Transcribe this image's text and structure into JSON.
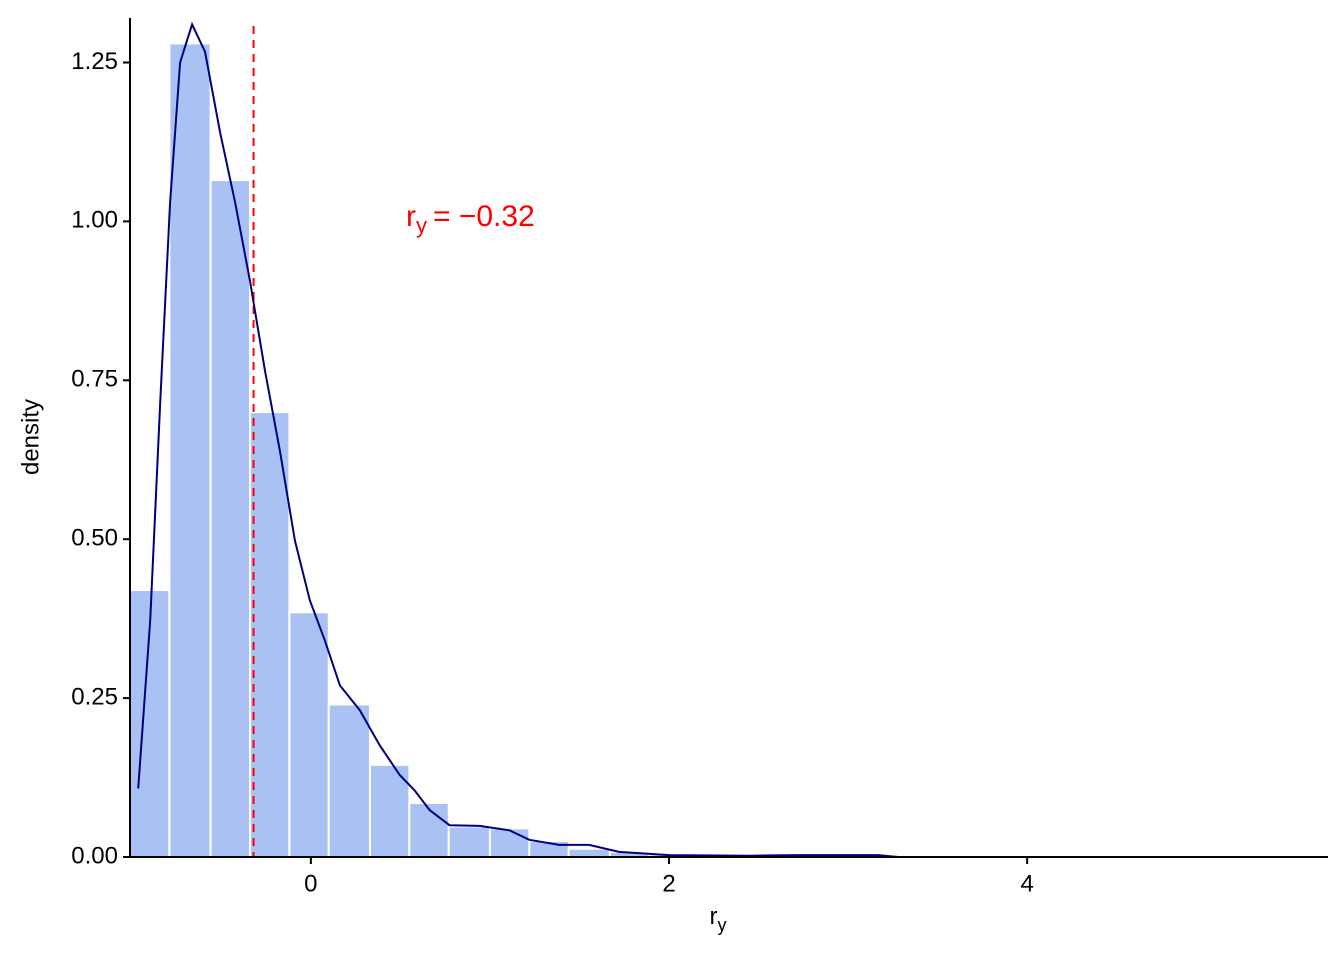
{
  "chart_data": {
    "type": "histogram",
    "xlabel": {
      "main": "r",
      "sub": "y"
    },
    "ylabel": "density",
    "bins": [
      -1.01,
      -0.79,
      -0.56,
      -0.34,
      -0.12,
      0.1,
      0.33,
      0.55,
      0.77,
      1.0,
      1.22,
      1.44,
      1.67,
      1.89,
      2.11,
      2.34,
      2.56,
      2.78,
      3.0,
      3.23,
      3.45,
      3.67,
      3.9,
      4.12,
      4.34,
      4.56,
      4.79,
      5.01,
      5.23,
      5.46
    ],
    "values": [
      0.42,
      1.28,
      1.065,
      0.7,
      0.385,
      0.24,
      0.145,
      0.085,
      0.048,
      0.045,
      0.025,
      0.013,
      0.008,
      0.004,
      0.002,
      0.002,
      0.001,
      0.001,
      0.001,
      0.001,
      0,
      0,
      0.001,
      0,
      0,
      0,
      0,
      0,
      0.001
    ],
    "color": "#aac1f3",
    "density": {
      "color": "#00007f",
      "x": [
        -0.964,
        -0.897,
        -0.841,
        -0.786,
        -0.73,
        -0.663,
        -0.591,
        -0.507,
        -0.423,
        -0.34,
        -0.256,
        -0.173,
        -0.089,
        -0.006,
        0.078,
        0.162,
        0.273,
        0.384,
        0.496,
        0.579,
        0.663,
        0.774,
        0.942,
        1.109,
        1.22,
        1.387,
        1.554,
        1.721,
        2.0,
        2.45,
        2.72,
        3.17,
        3.28,
        5.51
      ],
      "y": [
        0.108,
        0.372,
        0.718,
        1.03,
        1.25,
        1.31,
        1.267,
        1.14,
        1.03,
        0.906,
        0.765,
        0.639,
        0.498,
        0.404,
        0.341,
        0.27,
        0.231,
        0.176,
        0.129,
        0.105,
        0.074,
        0.05,
        0.049,
        0.042,
        0.027,
        0.019,
        0.019,
        0.008,
        0.003,
        0.002,
        0.003,
        0.003,
        0,
        0
      ]
    },
    "vline": {
      "value": -0.32,
      "color": "#ff0000"
    },
    "annotation": {
      "main": "r",
      "sub": "y",
      "text": "= −0.32"
    },
    "xlim": [
      -1.01,
      5.68
    ],
    "ylim": [
      0,
      1.32
    ],
    "xticks": [
      0,
      2,
      4
    ],
    "yticks": [
      {
        "value": 0,
        "label": "0.00"
      },
      {
        "value": 0.25,
        "label": "0.25"
      },
      {
        "value": 0.5,
        "label": "0.50"
      },
      {
        "value": 0.75,
        "label": "0.75"
      },
      {
        "value": 1.0,
        "label": "1.00"
      },
      {
        "value": 1.25,
        "label": "1.25"
      }
    ]
  }
}
